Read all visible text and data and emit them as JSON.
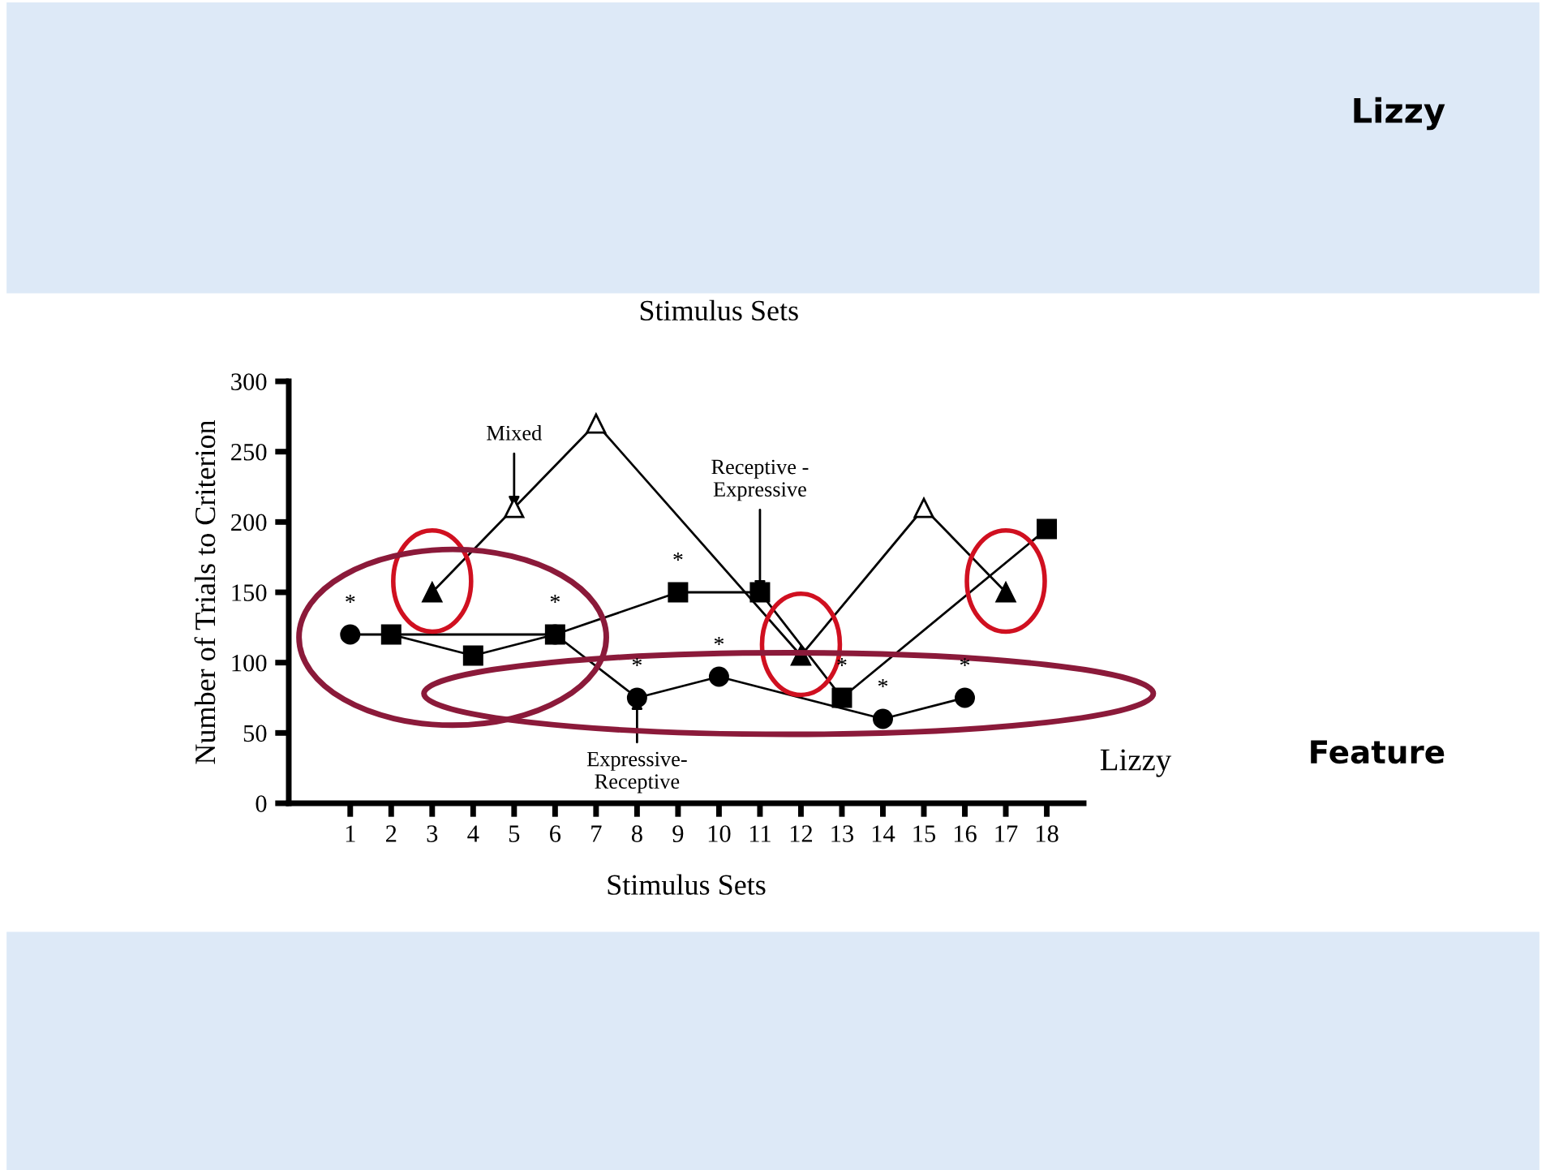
{
  "chart_data": {
    "type": "line",
    "title": "Lizzy",
    "subtitle": "Stimulus Sets",
    "xlabel": "Stimulus Sets",
    "ylabel": "Number of Trials to Criterion",
    "xlim": [
      -0.5,
      18.9
    ],
    "xticks": [
      1,
      2,
      3,
      4,
      5,
      6,
      7,
      8,
      9,
      10,
      11,
      12,
      13,
      14,
      15,
      16,
      17,
      18
    ],
    "ylim": [
      0,
      300
    ],
    "yticks": [
      0,
      50,
      100,
      150,
      200,
      250,
      300
    ],
    "grid": false,
    "legend": false,
    "line_style": "solid",
    "series": [
      {
        "marker": "circle",
        "color": "#000000",
        "x": [
          1,
          6,
          8,
          10,
          14,
          16
        ],
        "values": [
          120,
          120,
          75,
          90,
          60,
          75
        ],
        "value_labels": [
          "*",
          "*",
          "*",
          "*",
          "*",
          "*"
        ]
      },
      {
        "marker": "square",
        "color": "#000000",
        "x": [
          2,
          4,
          6,
          9,
          11,
          13,
          18
        ],
        "values": [
          120,
          105,
          120,
          150,
          150,
          75,
          195
        ],
        "value_labels": [
          null,
          null,
          null,
          "*",
          null,
          "*",
          null
        ]
      },
      {
        "marker": "none",
        "color": "#000000",
        "x": [
          3,
          5,
          7,
          12,
          15,
          17
        ],
        "values": [
          150,
          210,
          270,
          105,
          210,
          150
        ]
      },
      {
        "type": "scatter",
        "marker": "triangle",
        "color": "#000000",
        "x": [
          3,
          12,
          17
        ],
        "values": [
          150,
          105,
          150
        ]
      },
      {
        "type": "scatter",
        "marker": "triangle",
        "color": "#ffffff",
        "x": [
          5,
          7,
          15
        ],
        "values": [
          210,
          270,
          210
        ]
      }
    ],
    "annotations": [
      {
        "text": "Mixed",
        "x": 5,
        "y": 210
      },
      {
        "text": "Receptive -\nExpressive",
        "x": 11,
        "y": 150
      },
      {
        "text": "Expressive-\nReceptive",
        "x": 8,
        "y": 75
      },
      "Lizzy",
      "Feature"
    ]
  }
}
